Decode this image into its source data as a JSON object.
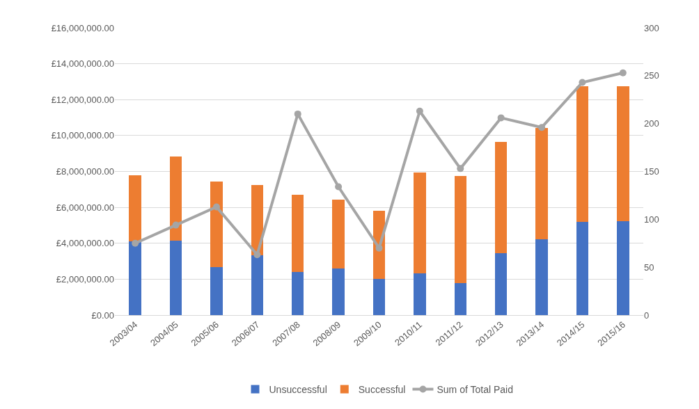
{
  "chart_data": {
    "type": "bar",
    "stacked": true,
    "categories": [
      "2003/04",
      "2004/05",
      "2005/06",
      "2006/07",
      "2007/08",
      "2008/09",
      "2009/10",
      "2010/11",
      "2011/12",
      "2012/13",
      "2013/14",
      "2014/15",
      "2015/16"
    ],
    "series": [
      {
        "name": "Unsuccessful",
        "color": "#4472c4",
        "values": [
          4090000,
          4130000,
          2670000,
          3320000,
          2400000,
          2610000,
          2020000,
          2320000,
          1790000,
          3450000,
          4230000,
          5180000,
          5230000
        ]
      },
      {
        "name": "Successful",
        "color": "#ed7d31",
        "values": [
          3700000,
          4710000,
          4780000,
          3920000,
          4300000,
          3820000,
          3790000,
          5610000,
          5960000,
          6180000,
          6210000,
          7550000,
          7500000
        ]
      },
      {
        "name": "Sum of Total Paid",
        "type": "line",
        "axis": "y2",
        "color": "#a5a5a5",
        "marker": "circle",
        "values": [
          75,
          94,
          113,
          63,
          210,
          134,
          70,
          213,
          153,
          206,
          196,
          243,
          253
        ]
      }
    ],
    "ylim": [
      0,
      16000000
    ],
    "yticks": [
      {
        "value": 0,
        "label": "£0.00"
      },
      {
        "value": 2000000,
        "label": "£2,000,000.00"
      },
      {
        "value": 4000000,
        "label": "£4,000,000.00"
      },
      {
        "value": 6000000,
        "label": "£6,000,000.00"
      },
      {
        "value": 8000000,
        "label": "£8,000,000.00"
      },
      {
        "value": 10000000,
        "label": "£10,000,000.00"
      },
      {
        "value": 12000000,
        "label": "£12,000,000.00"
      },
      {
        "value": 14000000,
        "label": "£14,000,000.00"
      },
      {
        "value": 16000000,
        "label": "£16,000,000.00"
      }
    ],
    "y2lim": [
      0,
      300
    ],
    "y2ticks": [
      0,
      50,
      100,
      150,
      200,
      250,
      300
    ],
    "grid": "y",
    "legend": "bottom"
  }
}
